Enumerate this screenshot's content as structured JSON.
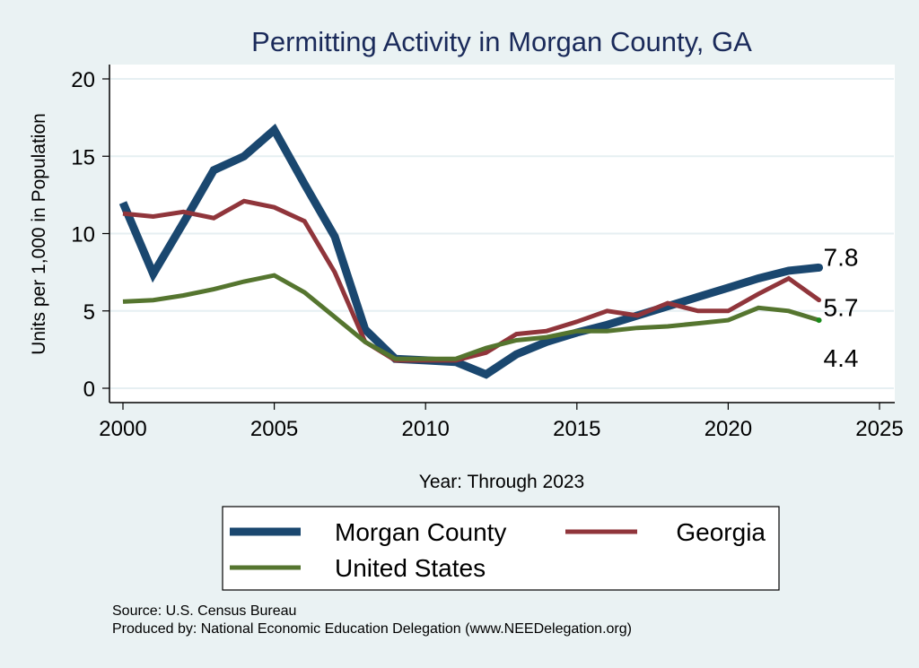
{
  "chart_data": {
    "type": "line",
    "title": "Permitting Activity in Morgan County, GA",
    "xlabel": "Year: Through 2023",
    "ylabel": "Units per 1,000 in Population",
    "xlim": [
      2000,
      2025
    ],
    "ylim": [
      0,
      20
    ],
    "x_ticks": [
      "2000",
      "2005",
      "2010",
      "2015",
      "2020",
      "2025"
    ],
    "y_ticks": [
      "0",
      "5",
      "10",
      "15",
      "20"
    ],
    "grid": true,
    "legend_position": "bottom",
    "x": [
      2000,
      2001,
      2002,
      2003,
      2004,
      2005,
      2006,
      2007,
      2008,
      2009,
      2010,
      2011,
      2012,
      2013,
      2014,
      2015,
      2016,
      2017,
      2018,
      2019,
      2020,
      2021,
      2022,
      2023
    ],
    "series": [
      {
        "name": "Morgan County",
        "color": "#1a476f",
        "end_label": "7.8",
        "values": [
          12.0,
          7.4,
          10.7,
          14.1,
          15.0,
          16.7,
          13.2,
          9.8,
          3.8,
          1.9,
          1.8,
          1.7,
          0.9,
          2.2,
          3.0,
          3.6,
          4.1,
          4.7,
          5.3,
          5.9,
          6.5,
          7.1,
          7.6,
          7.8
        ]
      },
      {
        "name": "Georgia",
        "color": "#90353b",
        "end_label": "5.7",
        "values": [
          11.3,
          11.1,
          11.4,
          11.0,
          12.1,
          11.7,
          10.8,
          7.5,
          3.0,
          1.8,
          1.8,
          1.8,
          2.3,
          3.5,
          3.7,
          4.3,
          5.0,
          4.7,
          5.5,
          5.0,
          5.0,
          6.1,
          7.1,
          5.7
        ]
      },
      {
        "name": "United States",
        "color": "#55752f",
        "end_label": "4.4",
        "values": [
          5.6,
          5.7,
          6.0,
          6.4,
          6.9,
          7.3,
          6.2,
          4.6,
          3.0,
          1.9,
          1.9,
          1.9,
          2.6,
          3.1,
          3.3,
          3.7,
          3.7,
          3.9,
          4.0,
          4.2,
          4.4,
          5.2,
          5.0,
          4.4
        ]
      }
    ]
  },
  "footer": {
    "source": "Source: U.S. Census Bureau",
    "produced_by": "Produced by: National Economic Education Delegation (www.NEEDelegation.org)"
  }
}
